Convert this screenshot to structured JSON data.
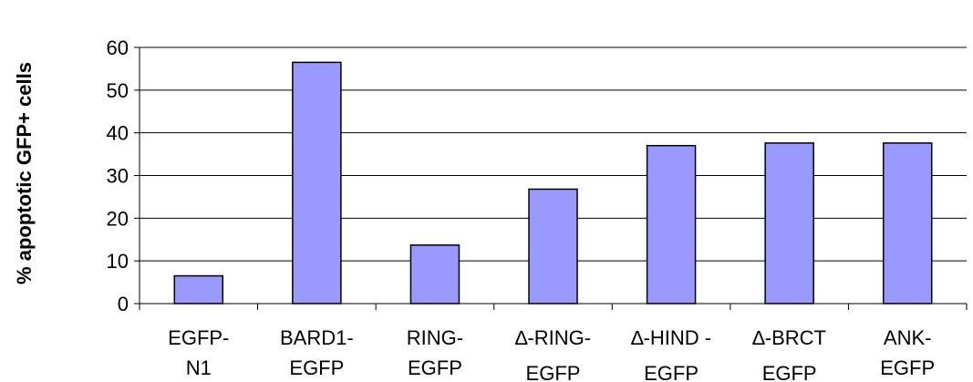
{
  "chart_data": {
    "type": "bar",
    "title": "",
    "xlabel": "",
    "ylabel": "% apoptotic GFP+ cells",
    "ylim": [
      0,
      60
    ],
    "yticks": [
      0,
      10,
      20,
      30,
      40,
      50,
      60
    ],
    "grid": true,
    "legend": "none",
    "bar_color": "#9999ff",
    "categories": [
      [
        "EGFP-",
        "N1"
      ],
      [
        "BARD1-",
        "EGFP"
      ],
      [
        "RING-",
        "EGFP"
      ],
      [
        "∆-RING-",
        "EGFP"
      ],
      [
        "∆-HIND -",
        "EGFP"
      ],
      [
        "∆-BRCT",
        "EGFP"
      ],
      [
        "ANK-",
        "EGFP"
      ]
    ],
    "values": [
      6.5,
      56.5,
      13.7,
      26.8,
      37,
      37.6,
      37.6
    ]
  }
}
